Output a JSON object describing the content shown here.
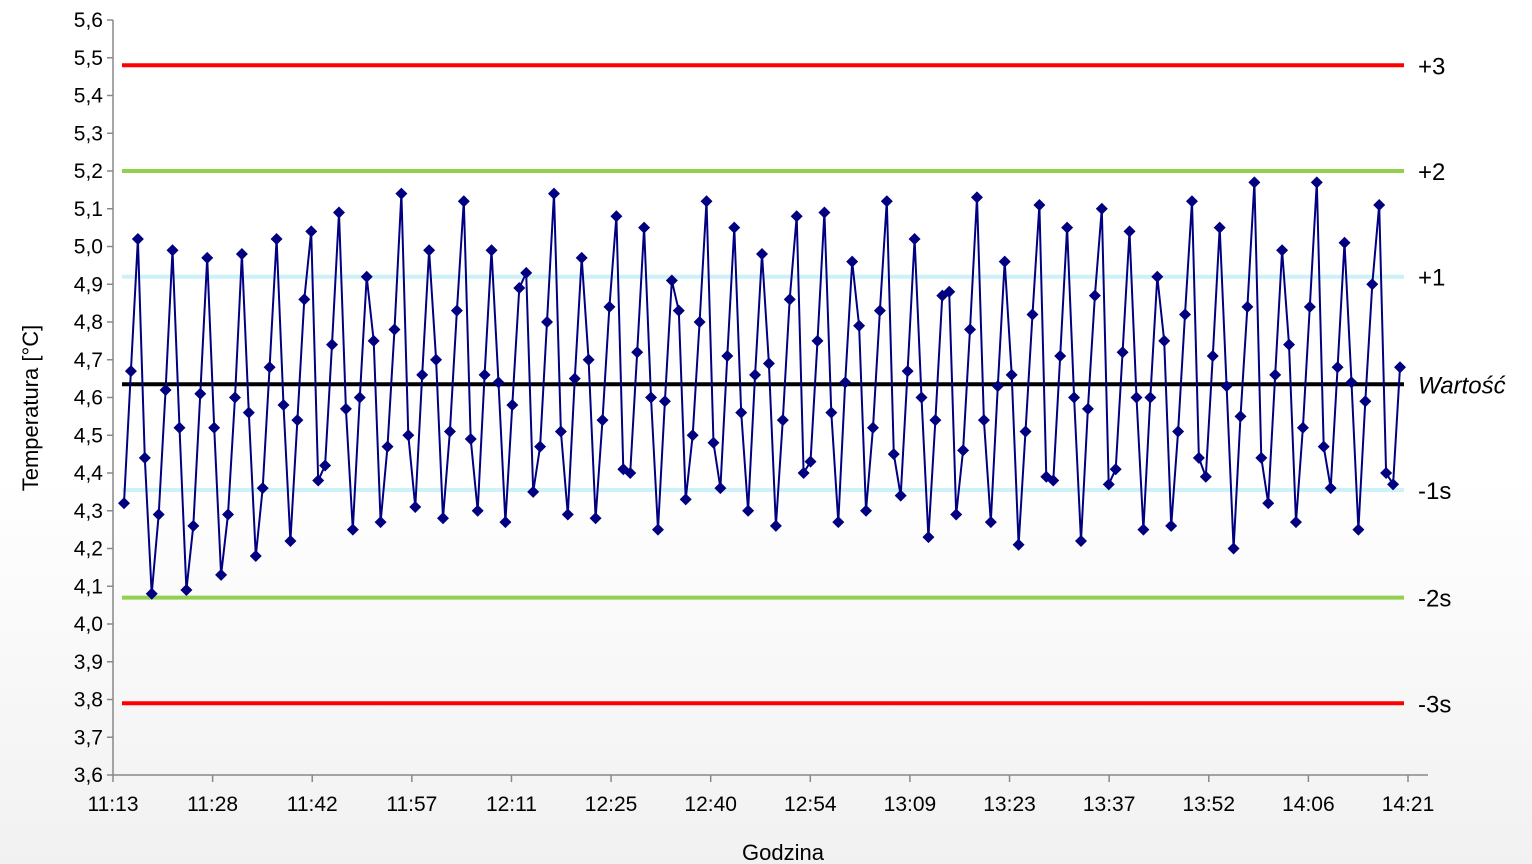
{
  "chart_data": {
    "type": "line",
    "title": "",
    "xlabel": "Godzina",
    "ylabel": "Temperatura [°C]",
    "ylim": [
      3.6,
      5.6
    ],
    "y_ticks": [
      "3,6",
      "3,7",
      "3,8",
      "3,9",
      "4,0",
      "4,1",
      "4,2",
      "4,3",
      "4,4",
      "4,5",
      "4,6",
      "4,7",
      "4,8",
      "4,9",
      "5,0",
      "5,1",
      "5,2",
      "5,3",
      "5,4",
      "5,5",
      "5,6"
    ],
    "x_ticks": [
      "11:13",
      "11:28",
      "11:42",
      "11:57",
      "12:11",
      "12:25",
      "12:40",
      "12:54",
      "13:09",
      "13:23",
      "13:37",
      "13:52",
      "14:06",
      "14:21"
    ],
    "grid": false,
    "reference_lines": [
      {
        "label": "+3",
        "value": 5.48,
        "color": "#ff0000",
        "italic": false
      },
      {
        "label": "+2",
        "value": 5.2,
        "color": "#92d050",
        "italic": false
      },
      {
        "label": "+1",
        "value": 4.92,
        "color": "#ccf2f8",
        "italic": false
      },
      {
        "label": "Wartość",
        "value": 4.635,
        "color": "#000000",
        "italic": true
      },
      {
        "label": "-1s",
        "value": 4.355,
        "color": "#ccf2f8",
        "italic": false
      },
      {
        "label": "-2s",
        "value": 4.07,
        "color": "#92d050",
        "italic": false
      },
      {
        "label": "-3s",
        "value": 3.79,
        "color": "#ff0000",
        "italic": false
      }
    ],
    "series": [
      {
        "color": "#000080",
        "values": [
          4.32,
          4.67,
          5.02,
          4.44,
          4.08,
          4.29,
          4.62,
          4.99,
          4.52,
          4.09,
          4.26,
          4.61,
          4.97,
          4.52,
          4.13,
          4.29,
          4.6,
          4.98,
          4.56,
          4.18,
          4.36,
          4.68,
          5.02,
          4.58,
          4.22,
          4.54,
          4.86,
          5.04,
          4.38,
          4.42,
          4.74,
          5.09,
          4.57,
          4.25,
          4.6,
          4.92,
          4.75,
          4.27,
          4.47,
          4.78,
          5.14,
          4.5,
          4.31,
          4.66,
          4.99,
          4.7,
          4.28,
          4.51,
          4.83,
          5.12,
          4.49,
          4.3,
          4.66,
          4.99,
          4.64,
          4.27,
          4.58,
          4.89,
          4.93,
          4.35,
          4.47,
          4.8,
          5.14,
          4.51,
          4.29,
          4.65,
          4.97,
          4.7,
          4.28,
          4.54,
          4.84,
          5.08,
          4.41,
          4.4,
          4.72,
          5.05,
          4.6,
          4.25,
          4.59,
          4.91,
          4.83,
          4.33,
          4.5,
          4.8,
          5.12,
          4.48,
          4.36,
          4.71,
          5.05,
          4.56,
          4.3,
          4.66,
          4.98,
          4.69,
          4.26,
          4.54,
          4.86,
          5.08,
          4.4,
          4.43,
          4.75,
          5.09,
          4.56,
          4.27,
          4.64,
          4.96,
          4.79,
          4.3,
          4.52,
          4.83,
          5.12,
          4.45,
          4.34,
          4.67,
          5.02,
          4.6,
          4.23,
          4.54,
          4.87,
          4.88,
          4.29,
          4.46,
          4.78,
          5.13,
          4.54,
          4.27,
          4.63,
          4.96,
          4.66,
          4.21,
          4.51,
          4.82,
          5.11,
          4.39,
          4.38,
          4.71,
          5.05,
          4.6,
          4.22,
          4.57,
          4.87,
          5.1,
          4.37,
          4.41,
          4.72,
          5.04,
          4.6,
          4.25,
          4.6,
          4.92,
          4.75,
          4.26,
          4.51,
          4.82,
          5.12,
          4.44,
          4.39,
          4.71,
          5.05,
          4.63,
          4.2,
          4.55,
          4.84,
          5.17,
          4.44,
          4.32,
          4.66,
          4.99,
          4.74,
          4.27,
          4.52,
          4.84,
          5.17,
          4.47,
          4.36,
          4.68,
          5.01,
          4.64,
          4.25,
          4.59,
          4.9,
          5.11,
          4.4,
          4.37,
          4.68
        ]
      }
    ]
  }
}
